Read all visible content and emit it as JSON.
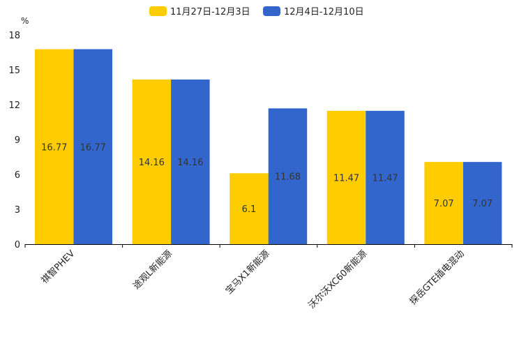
{
  "chart_data": {
    "type": "bar",
    "title": "",
    "xlabel": "",
    "ylabel": "%",
    "ylim": [
      0,
      18
    ],
    "yticks": [
      0,
      3,
      6,
      9,
      12,
      15,
      18
    ],
    "legend_position": "top-center",
    "grid": false,
    "categories": [
      "祺智PHEV",
      "途观L新能源",
      "宝马X1新能源",
      "沃尔沃XC60新能源",
      "探岳GTE插电混动"
    ],
    "series": [
      {
        "name": "11月27日-12月3日",
        "color": "#FFCC00",
        "values": [
          16.77,
          14.16,
          6.1,
          11.47,
          7.07
        ],
        "labels": [
          "16.77",
          "14.16",
          "6.1",
          "11.47",
          "7.07"
        ]
      },
      {
        "name": "12月4日-12月10日",
        "color": "#3366CC",
        "values": [
          16.77,
          14.16,
          11.68,
          11.47,
          7.07
        ],
        "labels": [
          "16.77",
          "14.16",
          "11.68",
          "11.47",
          "7.07"
        ]
      }
    ]
  }
}
